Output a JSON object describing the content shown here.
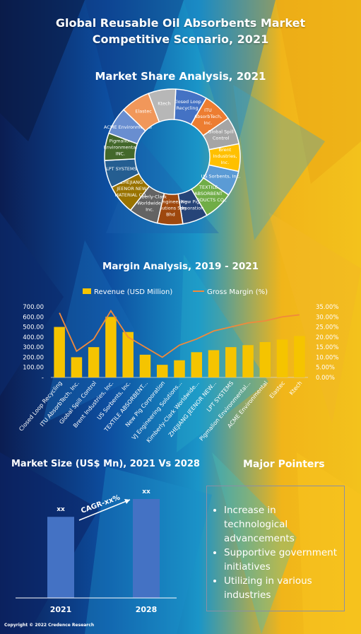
{
  "header": {
    "title_line1": "Global Reusable Oil Absorbents Market",
    "title_line2": "Competitive Scenario, 2021"
  },
  "colors": {
    "bar": "#f5c400",
    "margin_line": "#f08a3c",
    "market_bar": "#4472c4"
  },
  "chart_data": [
    {
      "type": "pie",
      "title": "Market Share Analysis, 2021",
      "donut": true,
      "slices": [
        {
          "label": "Closed Loop Recycling",
          "value": 7.5,
          "color": "#4472c4"
        },
        {
          "label": "ITU AbsorbTech, Inc.",
          "value": 7.0,
          "color": "#ed7d31"
        },
        {
          "label": "Global Spill Control",
          "value": 6.5,
          "color": "#a5a5a5"
        },
        {
          "label": "Brent Industries, Inc.",
          "value": 6.5,
          "color": "#ffc000"
        },
        {
          "label": "US Sorbents, Inc.",
          "value": 6.0,
          "color": "#5b9bd5"
        },
        {
          "label": "TEXTILE ABSORBENT PRODUCTS CO., LLC",
          "value": 7.0,
          "color": "#70ad47"
        },
        {
          "label": "New Pig Corporation",
          "value": 6.0,
          "color": "#264478"
        },
        {
          "label": "VJ Engineering Solutions Sdn Bhd",
          "value": 6.0,
          "color": "#9e480e"
        },
        {
          "label": "Kimberly-Clark Worldwide, Inc.",
          "value": 7.0,
          "color": "#636363"
        },
        {
          "label": "ZHEJIANG JEENOR NEW MATERIAL CO., LTD",
          "value": 7.0,
          "color": "#997300"
        },
        {
          "label": "LPT SYSTEMS",
          "value": 6.5,
          "color": "#255e91"
        },
        {
          "label": "Pigmalion Environmental INC.",
          "value": 6.5,
          "color": "#43682b"
        },
        {
          "label": "ACME Environmental",
          "value": 6.5,
          "color": "#698ed0"
        },
        {
          "label": "Elastec",
          "value": 7.0,
          "color": "#f1975a"
        },
        {
          "label": "Ktech",
          "value": 6.5,
          "color": "#b7b7b7"
        }
      ],
      "slice_text": [
        "Closed Loop Recycling",
        "ITU AbsorbTech, Inc.",
        "Global Spill Control",
        "Brent Industries, Inc.",
        "US Sorbents, Inc.",
        "TEXTILE ABSORBENT PRODUCTS CO., LLC",
        "New Pig Corporation",
        "VJ Engineering Solutions Sdn Bhd",
        "Kimberly-Clark Worldwide, Inc.",
        "ZHEJIANG JEENOR NEW MATERIAL CO., LTD",
        "LPT SYSTEMS",
        "Pigmalion Environmental INC.",
        "ACME Environmental",
        "Elastec",
        "Ktech"
      ]
    },
    {
      "type": "bar",
      "title": "Margin Analysis, 2019 - 2021",
      "legend": [
        "Revenue (USD Million)",
        "Gross Margin (%)"
      ],
      "legend_position": "top",
      "categories": [
        "Closed Loop Recycling",
        "ITU AbsorbTech, Inc.",
        "Global Spill Control",
        "Brent Industries, Inc.",
        "US Sorbents, Inc.",
        "TEXTILE ABSORBENT...",
        "New Pig Corporation",
        "VJ Engineering Solutions...",
        "Kimberly-Clark Worldwide...",
        "ZHEJIANG JEENOR NEW...",
        "LPT SYSTEMS",
        "Pigmalion Environmental...",
        "ACME Environmental",
        "Elastec",
        "Ktech"
      ],
      "series": [
        {
          "name": "Revenue (USD Million)",
          "type": "bar",
          "axis": "left",
          "values": [
            500,
            200,
            300,
            600,
            450,
            225,
            125,
            170,
            250,
            270,
            300,
            320,
            350,
            375,
            410
          ]
        },
        {
          "name": "Gross Margin (%)",
          "type": "line",
          "axis": "right",
          "values": [
            32,
            13,
            19,
            33,
            20,
            15,
            10,
            16,
            19,
            23,
            25,
            27,
            28,
            30,
            31
          ]
        }
      ],
      "left_axis": {
        "min": 0,
        "max": 700,
        "ticks": [
          "700.00",
          "600.00",
          "500.00",
          "400.00",
          "300.00",
          "200.00",
          "100.00",
          "-"
        ]
      },
      "right_axis": {
        "min": 0,
        "max": 35,
        "ticks": [
          "35.00%",
          "30.00%",
          "25.00%",
          "20.00%",
          "15.00%",
          "10.00%",
          "5.00%",
          "0.00%"
        ]
      }
    },
    {
      "type": "bar",
      "title": "Market Size (US$ Mn), 2021 Vs 2028",
      "categories": [
        "2021",
        "2028"
      ],
      "values": [
        1.0,
        1.22
      ],
      "data_labels": [
        "xx",
        "xx"
      ],
      "annotation": "CAGR-xx%"
    }
  ],
  "pointers": {
    "title": "Major Pointers",
    "items": [
      "Increase in technological advancements",
      "Supportive government initiatives",
      "Utilizing in various industries"
    ]
  },
  "footer": {
    "copyright": "Copyright © 2022 Credence Research"
  }
}
